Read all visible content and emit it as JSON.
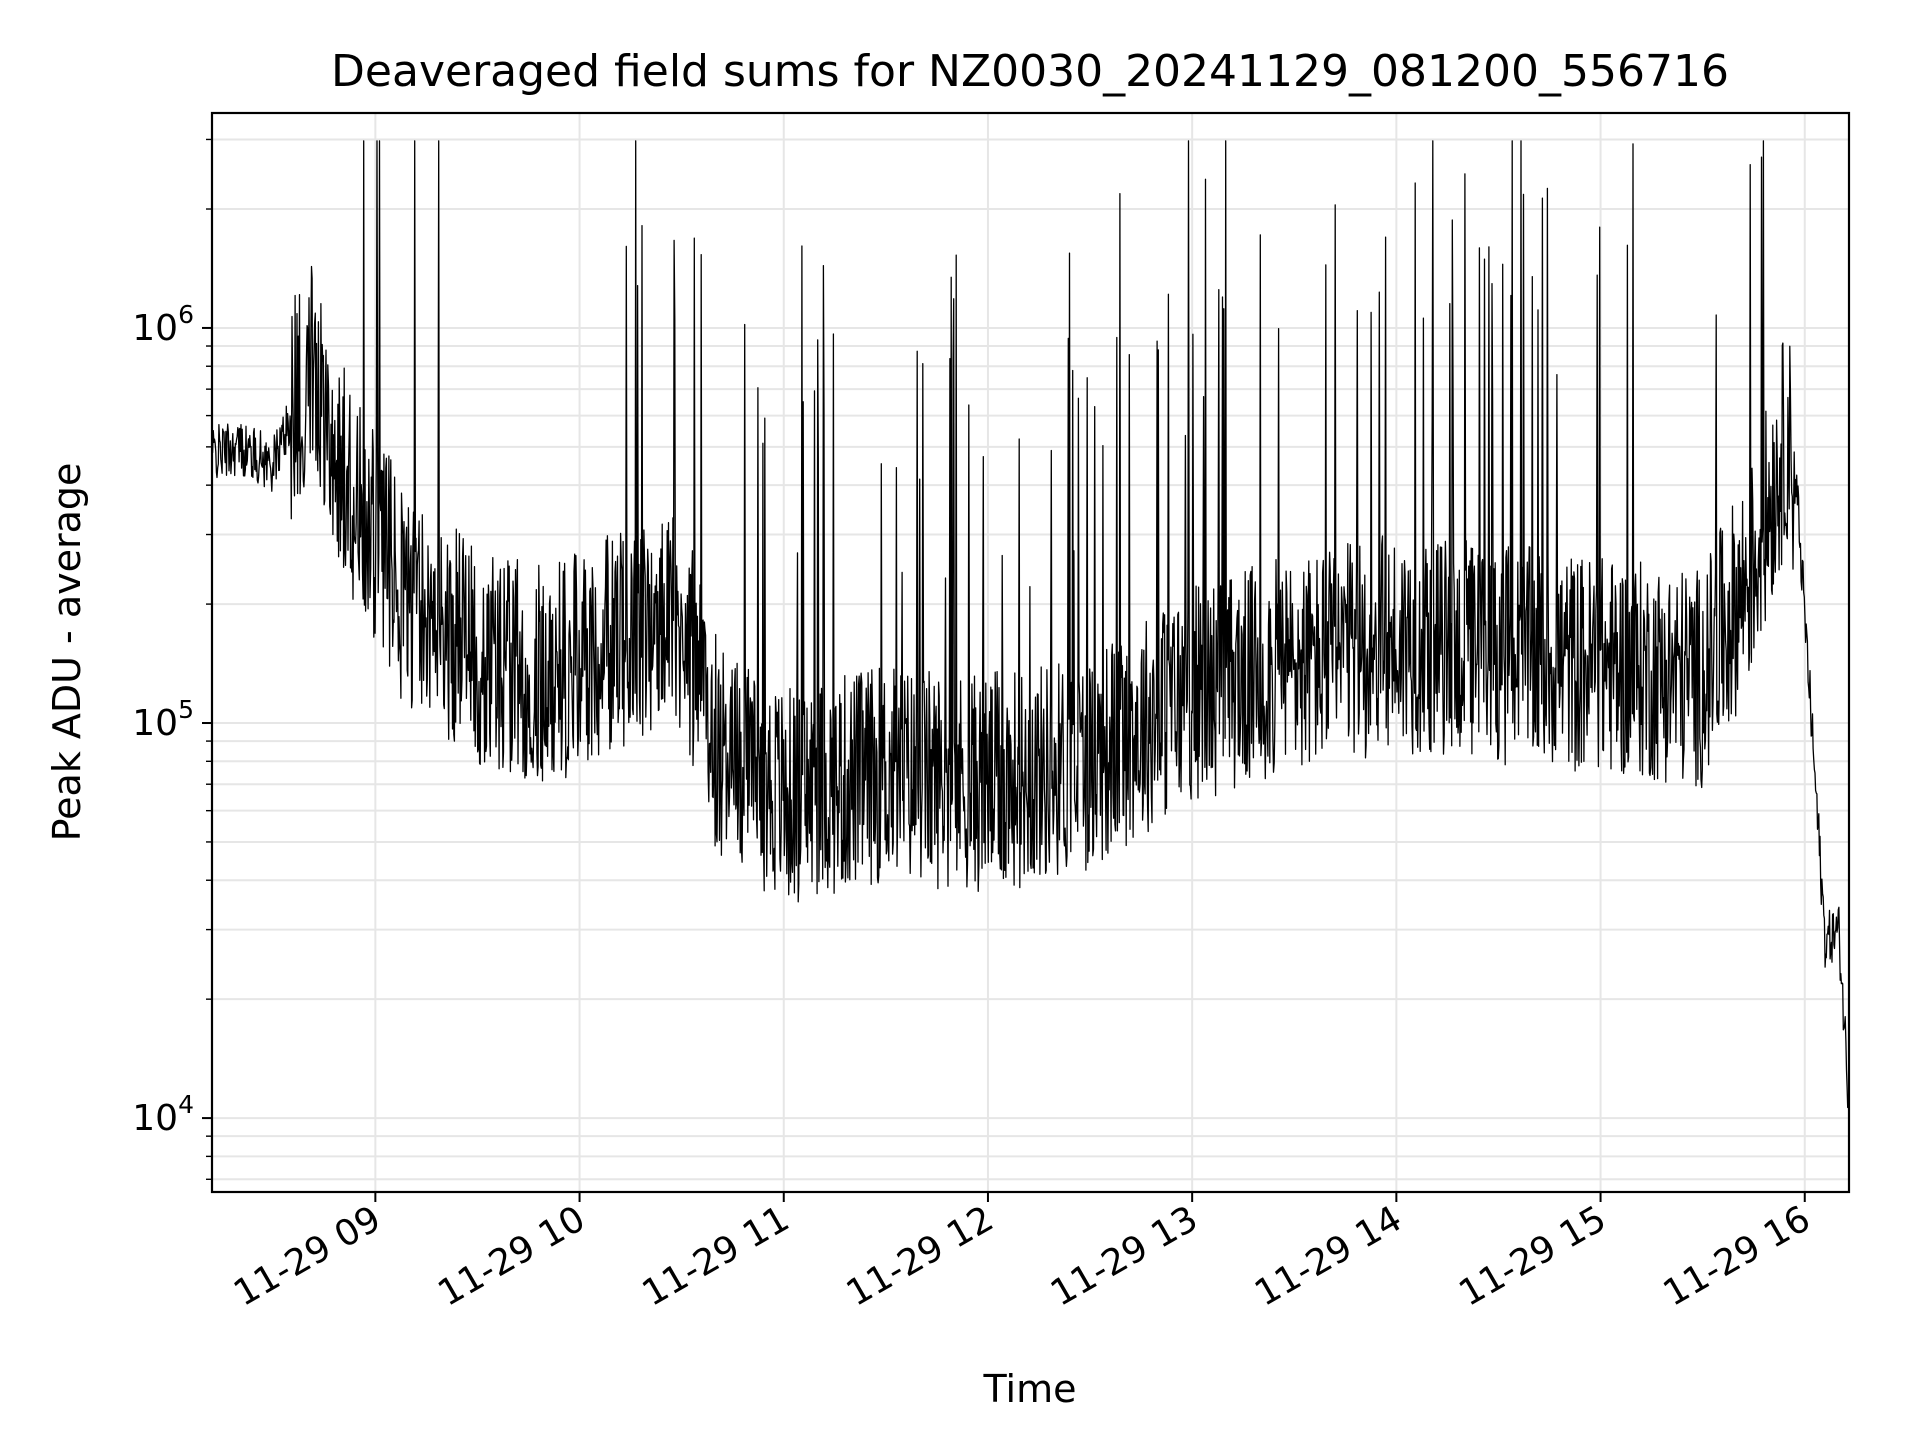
{
  "chart_data": {
    "type": "line",
    "title": "Deaveraged field sums for NZ0030_20241129_081200_556716",
    "xlabel": "Time",
    "ylabel": "Peak ADU - average",
    "yscale": "log",
    "ylim": [
      6500,
      3500000
    ],
    "xlim": [
      "2024-11-29 08:12",
      "2024-11-29 16:13"
    ],
    "grid": true,
    "line_color": "#000000",
    "grid_color": "#e6e6e6",
    "x_ticks": [
      "11-29 09",
      "11-29 10",
      "11-29 11",
      "11-29 12",
      "11-29 13",
      "11-29 14",
      "11-29 15",
      "11-29 16"
    ],
    "y_ticks": [
      {
        "value": 10000,
        "base": "10",
        "exp": "4"
      },
      {
        "value": 100000,
        "base": "10",
        "exp": "5"
      },
      {
        "value": 1000000,
        "base": "10",
        "exp": "6"
      }
    ],
    "series": [
      {
        "x": [
          "2024-11-29 08:12",
          "2024-11-29 08:20",
          "2024-11-29 08:30",
          "2024-11-29 08:38",
          "2024-11-29 08:42",
          "2024-11-29 08:48",
          "2024-11-29 08:55",
          "2024-11-29 09:10",
          "2024-11-29 09:30",
          "2024-11-29 09:50",
          "2024-11-29 10:10",
          "2024-11-29 10:30",
          "2024-11-29 10:40",
          "2024-11-29 11:00",
          "2024-11-29 11:30",
          "2024-11-29 12:00",
          "2024-11-29 12:30",
          "2024-11-29 13:00",
          "2024-11-29 13:30",
          "2024-11-29 14:00",
          "2024-11-29 14:30",
          "2024-11-29 15:00",
          "2024-11-29 15:30",
          "2024-11-29 15:45",
          "2024-11-29 15:55",
          "2024-11-29 15:58",
          "2024-11-29 16:02",
          "2024-11-29 16:06",
          "2024-11-29 16:10",
          "2024-11-29 16:13"
        ],
        "y": [
          480000,
          500000,
          450000,
          700000,
          900000,
          500000,
          350000,
          200000,
          150000,
          130000,
          160000,
          180000,
          90000,
          65000,
          75000,
          70000,
          80000,
          120000,
          140000,
          160000,
          150000,
          140000,
          130000,
          250000,
          550000,
          350000,
          100000,
          28000,
          30000,
          11000
        ]
      }
    ]
  }
}
